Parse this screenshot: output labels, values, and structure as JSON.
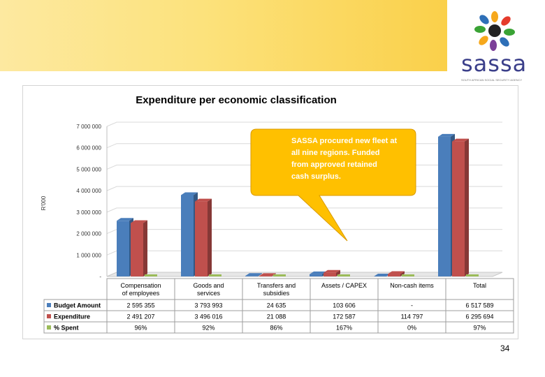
{
  "brand": {
    "name": "sassa",
    "tagline": "SOUTH AFRICAN SOCIAL SECURITY AGENCY"
  },
  "page_number": "34",
  "callout_text": [
    "SASSA procured new fleet at",
    "all nine regions. Funded",
    "from approved retained",
    "cash surplus."
  ],
  "colors": {
    "budget": "#4a7ebb",
    "expenditure": "#c0504d",
    "spent": "#9bbb59",
    "callout": "#ffc000"
  },
  "chart_data": {
    "type": "bar",
    "title": "Expenditure per economic classification",
    "ylabel": "R'000",
    "xlabel": "",
    "ylim": [
      0,
      7000000
    ],
    "yticks": [
      "7 000 000",
      "6 000 000",
      "5 000 000",
      "4 000 000",
      "3 000 000",
      "2 000 000",
      "1 000 000",
      "-"
    ],
    "ytick_values": [
      7000000,
      6000000,
      5000000,
      4000000,
      3000000,
      2000000,
      1000000,
      0
    ],
    "categories": [
      [
        "Compensation",
        "of employees"
      ],
      [
        "Goods and",
        "services"
      ],
      [
        "Transfers and",
        "subsidies"
      ],
      [
        "Assets / CAPEX"
      ],
      [
        "Non-cash items"
      ],
      [
        "Total"
      ]
    ],
    "series": [
      {
        "name": "Budget Amount",
        "key": "budget",
        "values": [
          2595355,
          3793993,
          24635,
          103606,
          0,
          6517589
        ],
        "labels": [
          "2 595 355",
          "3 793 993",
          "24 635",
          "103 606",
          "-",
          "6 517 589"
        ]
      },
      {
        "name": "Expenditure",
        "key": "expenditure",
        "values": [
          2491207,
          3496016,
          21088,
          172587,
          114797,
          6295694
        ],
        "labels": [
          "2 491 207",
          "3 496 016",
          "21 088",
          "172 587",
          "114 797",
          "6 295 694"
        ]
      },
      {
        "name": "% Spent",
        "key": "spent",
        "values": [
          96,
          92,
          86,
          167,
          0,
          97
        ],
        "labels": [
          "96%",
          "92%",
          "86%",
          "167%",
          "0%",
          "97%"
        ]
      }
    ]
  }
}
